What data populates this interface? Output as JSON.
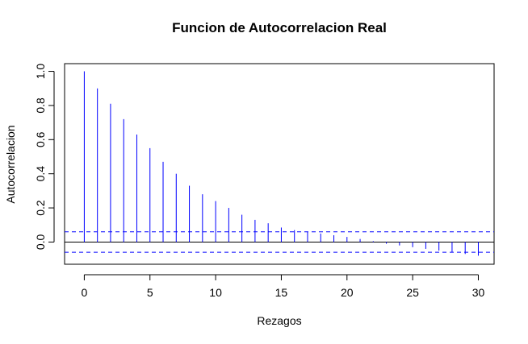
{
  "chart_data": {
    "type": "bar",
    "title": "Funcion de Autocorrelacion Real",
    "xlabel": "Rezagos",
    "ylabel": "Autocorrelacion",
    "xlim": [
      -1.5,
      31.2
    ],
    "ylim": [
      -0.13,
      1.045
    ],
    "x_ticks": [
      "0",
      "5",
      "10",
      "15",
      "20",
      "25",
      "30"
    ],
    "y_ticks": [
      "0.0",
      "0.2",
      "0.4",
      "0.6",
      "0.8",
      "1.0"
    ],
    "x": [
      0,
      1,
      2,
      3,
      4,
      5,
      6,
      7,
      8,
      9,
      10,
      11,
      12,
      13,
      14,
      15,
      16,
      17,
      18,
      19,
      20,
      21,
      22,
      23,
      24,
      25,
      26,
      27,
      28,
      29,
      30
    ],
    "values": [
      1.0,
      0.9,
      0.81,
      0.72,
      0.63,
      0.55,
      0.47,
      0.4,
      0.33,
      0.28,
      0.24,
      0.2,
      0.16,
      0.13,
      0.11,
      0.085,
      0.07,
      0.06,
      0.05,
      0.04,
      0.03,
      0.018,
      0.005,
      -0.01,
      -0.02,
      -0.03,
      -0.04,
      -0.05,
      -0.06,
      -0.07,
      -0.08
    ],
    "confidence_band": [
      -0.06,
      0.06
    ],
    "bar_color": "#0000ff",
    "band_color": "#0000ff",
    "grid": false
  }
}
